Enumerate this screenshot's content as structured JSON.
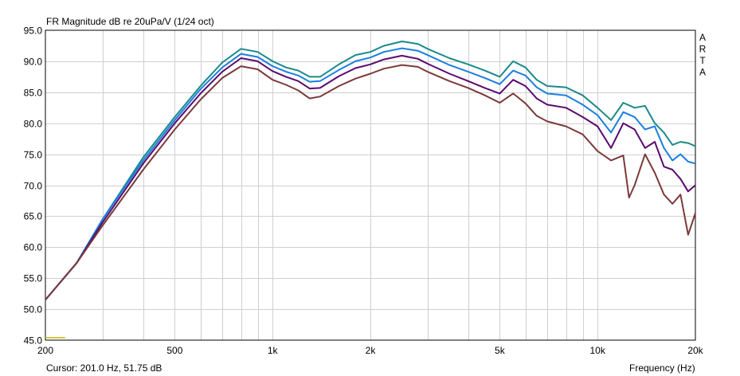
{
  "chart_data": {
    "type": "line",
    "title": "FR Magnitude dB re 20uPa/V (1/24 oct)",
    "xlabel": "Frequency (Hz)",
    "ylabel": "",
    "x_scale": "log",
    "xlim": [
      200,
      20000
    ],
    "ylim": [
      45,
      95
    ],
    "grid": true,
    "x_ticks": [
      {
        "value": 200,
        "label": "200"
      },
      {
        "value": 500,
        "label": "500"
      },
      {
        "value": 1000,
        "label": "1k"
      },
      {
        "value": 2000,
        "label": "2k"
      },
      {
        "value": 5000,
        "label": "5k"
      },
      {
        "value": 10000,
        "label": "10k"
      },
      {
        "value": 20000,
        "label": "20k"
      }
    ],
    "y_ticks": [
      "45.0",
      "50.0",
      "55.0",
      "60.0",
      "65.0",
      "70.0",
      "75.0",
      "80.0",
      "85.0",
      "90.0",
      "95.0"
    ],
    "watermark": [
      "A",
      "R",
      "T",
      "A"
    ],
    "cursor_text": "Cursor: 201.0 Hz, 51.75 dB",
    "marker": {
      "x": [
        200,
        230
      ],
      "y": 45.4,
      "color": "#c8b400"
    },
    "series": [
      {
        "color": "#1a8a8a",
        "points": [
          [
            200,
            51.5
          ],
          [
            250,
            57.5
          ],
          [
            300,
            64.5
          ],
          [
            400,
            74.5
          ],
          [
            500,
            81
          ],
          [
            600,
            86
          ],
          [
            700,
            89.8
          ],
          [
            800,
            92
          ],
          [
            900,
            91.5
          ],
          [
            1000,
            90
          ],
          [
            1100,
            89
          ],
          [
            1200,
            88.5
          ],
          [
            1300,
            87.5
          ],
          [
            1400,
            87.5
          ],
          [
            1600,
            89.5
          ],
          [
            1800,
            91
          ],
          [
            2000,
            91.5
          ],
          [
            2200,
            92.5
          ],
          [
            2500,
            93.2
          ],
          [
            2800,
            92.8
          ],
          [
            3000,
            92
          ],
          [
            3500,
            90.5
          ],
          [
            4000,
            89.5
          ],
          [
            4500,
            88.5
          ],
          [
            5000,
            87.5
          ],
          [
            5500,
            90
          ],
          [
            6000,
            89
          ],
          [
            6500,
            87
          ],
          [
            7000,
            86
          ],
          [
            8000,
            85.8
          ],
          [
            9000,
            84.5
          ],
          [
            10000,
            82.5
          ],
          [
            11000,
            80.5
          ],
          [
            12000,
            83.3
          ],
          [
            13000,
            82.5
          ],
          [
            14000,
            82.8
          ],
          [
            15000,
            80
          ],
          [
            16000,
            78.5
          ],
          [
            17000,
            76.5
          ],
          [
            18000,
            77
          ],
          [
            19000,
            76.8
          ],
          [
            20000,
            76.3
          ]
        ]
      },
      {
        "color": "#1a7fe0",
        "points": [
          [
            200,
            51.5
          ],
          [
            250,
            57.5
          ],
          [
            300,
            64.5
          ],
          [
            400,
            74
          ],
          [
            500,
            80.5
          ],
          [
            600,
            85.5
          ],
          [
            700,
            89
          ],
          [
            800,
            91.2
          ],
          [
            900,
            90.7
          ],
          [
            1000,
            89.2
          ],
          [
            1100,
            88.3
          ],
          [
            1200,
            87.7
          ],
          [
            1300,
            86.7
          ],
          [
            1400,
            86.8
          ],
          [
            1600,
            88.6
          ],
          [
            1800,
            90
          ],
          [
            2000,
            90.6
          ],
          [
            2200,
            91.5
          ],
          [
            2500,
            92.1
          ],
          [
            2800,
            91.7
          ],
          [
            3000,
            91
          ],
          [
            3500,
            89.4
          ],
          [
            4000,
            88.3
          ],
          [
            4500,
            87.3
          ],
          [
            5000,
            86.3
          ],
          [
            5500,
            88.5
          ],
          [
            6000,
            87.7
          ],
          [
            6500,
            85.8
          ],
          [
            7000,
            84.8
          ],
          [
            8000,
            84.5
          ],
          [
            9000,
            83
          ],
          [
            10000,
            81.3
          ],
          [
            11000,
            78.5
          ],
          [
            12000,
            81.8
          ],
          [
            13000,
            81
          ],
          [
            14000,
            79
          ],
          [
            15000,
            79.5
          ],
          [
            16000,
            76
          ],
          [
            17000,
            74
          ],
          [
            18000,
            75
          ],
          [
            19000,
            73.8
          ],
          [
            20000,
            73.5
          ]
        ]
      },
      {
        "color": "#5a0a6e",
        "points": [
          [
            200,
            51.5
          ],
          [
            250,
            57.5
          ],
          [
            300,
            64
          ],
          [
            400,
            73.5
          ],
          [
            500,
            80
          ],
          [
            600,
            84.8
          ],
          [
            700,
            88.3
          ],
          [
            800,
            90.5
          ],
          [
            900,
            90
          ],
          [
            1000,
            88.4
          ],
          [
            1100,
            87.5
          ],
          [
            1200,
            86.8
          ],
          [
            1300,
            85.6
          ],
          [
            1400,
            85.7
          ],
          [
            1600,
            87.6
          ],
          [
            1800,
            88.9
          ],
          [
            2000,
            89.5
          ],
          [
            2200,
            90.3
          ],
          [
            2500,
            90.9
          ],
          [
            2800,
            90.4
          ],
          [
            3000,
            89.6
          ],
          [
            3500,
            88
          ],
          [
            4000,
            86.8
          ],
          [
            4500,
            85.7
          ],
          [
            5000,
            84.8
          ],
          [
            5500,
            87
          ],
          [
            6000,
            86
          ],
          [
            6500,
            84
          ],
          [
            7000,
            83
          ],
          [
            8000,
            82.5
          ],
          [
            9000,
            81
          ],
          [
            10000,
            79.5
          ],
          [
            11000,
            76
          ],
          [
            12000,
            80
          ],
          [
            13000,
            79
          ],
          [
            14000,
            76
          ],
          [
            15000,
            77
          ],
          [
            16000,
            73
          ],
          [
            17000,
            72.5
          ],
          [
            18000,
            71
          ],
          [
            19000,
            69
          ],
          [
            20000,
            70
          ]
        ]
      },
      {
        "color": "#7b3a3a",
        "points": [
          [
            200,
            51.5
          ],
          [
            250,
            57.5
          ],
          [
            300,
            63.5
          ],
          [
            400,
            72.5
          ],
          [
            500,
            79
          ],
          [
            600,
            83.8
          ],
          [
            700,
            87.3
          ],
          [
            800,
            89.2
          ],
          [
            900,
            88.7
          ],
          [
            1000,
            87
          ],
          [
            1100,
            86.2
          ],
          [
            1200,
            85.3
          ],
          [
            1300,
            84
          ],
          [
            1400,
            84.3
          ],
          [
            1600,
            86
          ],
          [
            1800,
            87.2
          ],
          [
            2000,
            88
          ],
          [
            2200,
            88.8
          ],
          [
            2500,
            89.4
          ],
          [
            2800,
            89.1
          ],
          [
            3000,
            88.3
          ],
          [
            3500,
            86.8
          ],
          [
            4000,
            85.7
          ],
          [
            4500,
            84.5
          ],
          [
            5000,
            83.3
          ],
          [
            5500,
            84.8
          ],
          [
            6000,
            83.2
          ],
          [
            6500,
            81.2
          ],
          [
            7000,
            80.3
          ],
          [
            8000,
            79.5
          ],
          [
            9000,
            78.2
          ],
          [
            10000,
            75.5
          ],
          [
            11000,
            74
          ],
          [
            12000,
            74.8
          ],
          [
            12500,
            68
          ],
          [
            13000,
            70
          ],
          [
            14000,
            75
          ],
          [
            15000,
            72
          ],
          [
            16000,
            68.5
          ],
          [
            17000,
            67
          ],
          [
            18000,
            68.5
          ],
          [
            19000,
            62
          ],
          [
            20000,
            65.5
          ]
        ]
      }
    ]
  }
}
